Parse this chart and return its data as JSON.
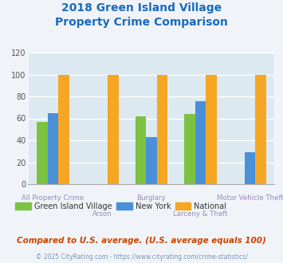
{
  "title_line1": "2018 Green Island Village",
  "title_line2": "Property Crime Comparison",
  "title_color": "#1a6abf",
  "categories": [
    "All Property Crime",
    "Arson",
    "Burglary",
    "Larceny & Theft",
    "Motor Vehicle Theft"
  ],
  "series": {
    "Green Island Village": [
      57,
      null,
      62,
      64,
      null
    ],
    "New York": [
      65,
      null,
      43,
      76,
      29
    ],
    "National": [
      100,
      100,
      100,
      100,
      100
    ]
  },
  "colors": {
    "Green Island Village": "#7cc242",
    "New York": "#4a90d9",
    "National": "#f5a623"
  },
  "ylim": [
    0,
    120
  ],
  "yticks": [
    0,
    20,
    40,
    60,
    80,
    100,
    120
  ],
  "bar_width": 0.22,
  "background_color": "#f0f4f8",
  "plot_bg_color": "#dce9f0",
  "grid_color": "#ffffff",
  "xlabel_color": "#9988bb",
  "footer_text": "Compared to U.S. average. (U.S. average equals 100)",
  "footer_color": "#cc4400",
  "copyright_text": "© 2025 CityRating.com - https://www.cityrating.com/crime-statistics/",
  "copyright_color": "#7799bb",
  "legend_text_color": "#333333"
}
